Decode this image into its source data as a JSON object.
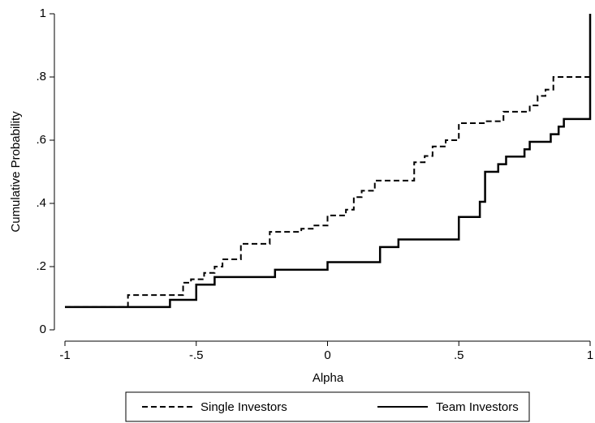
{
  "chart_data": {
    "type": "line",
    "step": "post",
    "x_label": "Alpha",
    "y_label": "Cumulative Probability",
    "xlim": [
      -1,
      1
    ],
    "ylim": [
      0,
      1
    ],
    "xticks": [
      -1,
      {
        "value": -0.5,
        "label": "-.5"
      },
      0,
      {
        "value": 0.5,
        "label": ".5"
      },
      1
    ],
    "yticks": [
      0,
      {
        "value": 0.2,
        "label": ".2"
      },
      {
        "value": 0.4,
        "label": ".4"
      },
      {
        "value": 0.6,
        "label": ".6"
      },
      {
        "value": 0.8,
        "label": ".8"
      },
      1
    ],
    "legend": "bottom",
    "series": [
      {
        "name": "Single Investors",
        "color": "#000000",
        "dash": true,
        "x": [
          -1,
          -0.76,
          -0.55,
          -0.52,
          -0.47,
          -0.43,
          -0.4,
          -0.33,
          -0.22,
          -0.1,
          -0.05,
          0,
          0.07,
          0.1,
          0.13,
          0.18,
          0.33,
          0.37,
          0.4,
          0.45,
          0.5,
          0.6,
          0.67,
          0.77,
          0.8,
          0.83,
          0.86,
          1
        ],
        "values": [
          0.072,
          0.11,
          0.149,
          0.16,
          0.18,
          0.2,
          0.223,
          0.272,
          0.31,
          0.32,
          0.33,
          0.362,
          0.38,
          0.42,
          0.44,
          0.472,
          0.53,
          0.55,
          0.58,
          0.6,
          0.654,
          0.66,
          0.69,
          0.71,
          0.74,
          0.76,
          0.8,
          0.8
        ]
      },
      {
        "name": "Team Investors",
        "color": "#000000",
        "dash": false,
        "x": [
          -1,
          -0.6,
          -0.5,
          -0.43,
          -0.2,
          0,
          0.2,
          0.27,
          0.5,
          0.58,
          0.6,
          0.65,
          0.68,
          0.75,
          0.77,
          0.85,
          0.88,
          0.9,
          1
        ],
        "values": [
          0.072,
          0.095,
          0.143,
          0.167,
          0.19,
          0.214,
          0.262,
          0.286,
          0.357,
          0.405,
          0.5,
          0.524,
          0.548,
          0.571,
          0.595,
          0.619,
          0.643,
          0.667,
          1
        ]
      }
    ]
  }
}
